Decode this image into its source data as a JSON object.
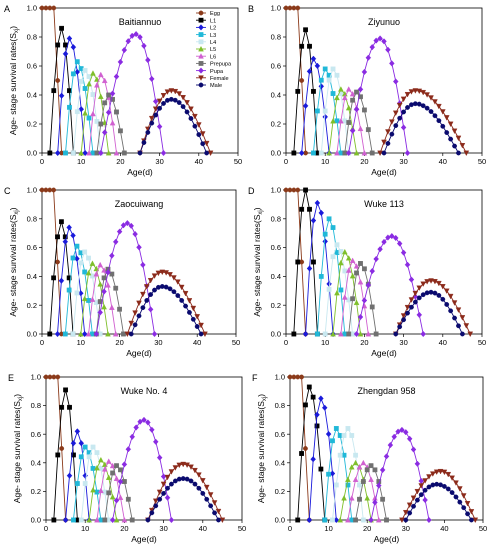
{
  "figure": {
    "legend": [
      {
        "label": "Egg",
        "color": "#8b3a1a",
        "marker": "circle"
      },
      {
        "label": "L1",
        "color": "#000000",
        "marker": "square"
      },
      {
        "label": "L2",
        "color": "#1a1adb",
        "marker": "diamond"
      },
      {
        "label": "L3",
        "color": "#20b8d8",
        "marker": "square"
      },
      {
        "label": "L4",
        "color": "#c8e8f0",
        "marker": "square"
      },
      {
        "label": "L5",
        "color": "#7fbf2a",
        "marker": "triangle"
      },
      {
        "label": "L6",
        "color": "#d060d0",
        "marker": "triangle"
      },
      {
        "label": "Prepupa",
        "color": "#707070",
        "marker": "square"
      },
      {
        "label": "Pupa",
        "color": "#8a2be2",
        "marker": "diamond"
      },
      {
        "label": "Female",
        "color": "#8b2a1a",
        "marker": "triangle-down"
      },
      {
        "label": "Male",
        "color": "#0a0a6e",
        "marker": "circle"
      }
    ]
  },
  "chart_data": [
    {
      "panel_letter": "A",
      "title": "Baitiannuo",
      "type": "line",
      "xlabel": "Age(d)",
      "ylabel": "Age- stage survival rates(S",
      "ylabel_sub": "xj",
      "ylabel_close": ")",
      "xlim": [
        0,
        50
      ],
      "ylim": [
        0,
        1.0
      ],
      "xticks": [
        0,
        10,
        20,
        30,
        40,
        50
      ],
      "yticks": [
        0.0,
        0.2,
        0.4,
        0.6,
        0.8,
        1.0
      ],
      "series": [
        {
          "stage": "Egg",
          "peak": 1.0,
          "start": 0,
          "plateau": 3,
          "end": 5
        },
        {
          "stage": "L1",
          "peak": 0.86,
          "start": 2,
          "mode": 5,
          "end": 8
        },
        {
          "stage": "L2",
          "peak": 0.79,
          "start": 4,
          "mode": 7,
          "end": 11
        },
        {
          "stage": "L3",
          "peak": 0.63,
          "start": 6,
          "mode": 9,
          "end": 13
        },
        {
          "stage": "L4",
          "peak": 0.57,
          "start": 8,
          "mode": 11,
          "end": 15
        },
        {
          "stage": "L5",
          "peak": 0.55,
          "start": 10,
          "mode": 13,
          "end": 17
        },
        {
          "stage": "L6",
          "peak": 0.54,
          "start": 12,
          "mode": 15,
          "end": 19
        },
        {
          "stage": "Prepupa",
          "peak": 0.4,
          "start": 14,
          "mode": 17,
          "end": 21
        },
        {
          "stage": "Pupa",
          "peak": 0.82,
          "start": 15,
          "mode": 24,
          "end": 31
        },
        {
          "stage": "Female",
          "peak": 0.43,
          "start": 25,
          "mode": 33,
          "end": 43
        },
        {
          "stage": "Male",
          "peak": 0.37,
          "start": 25,
          "mode": 33,
          "end": 42
        }
      ]
    },
    {
      "panel_letter": "B",
      "title": "Ziyunuo",
      "type": "line",
      "xlabel": "Age(d)",
      "ylabel": "",
      "xlim": [
        0,
        50
      ],
      "ylim": [
        0,
        1.0
      ],
      "xticks": [
        0,
        10,
        20,
        30,
        40,
        50
      ],
      "yticks": [
        0.0,
        0.2,
        0.4,
        0.6,
        0.8,
        1.0
      ],
      "series": [
        {
          "stage": "Egg",
          "peak": 1.0,
          "start": 0,
          "plateau": 3,
          "end": 5
        },
        {
          "stage": "L1",
          "peak": 0.85,
          "start": 2,
          "mode": 5,
          "end": 8
        },
        {
          "stage": "L2",
          "peak": 0.65,
          "start": 4,
          "mode": 7,
          "end": 11
        },
        {
          "stage": "L3",
          "peak": 0.58,
          "start": 7,
          "mode": 10,
          "end": 14
        },
        {
          "stage": "L4",
          "peak": 0.58,
          "start": 9,
          "mode": 12,
          "end": 16
        },
        {
          "stage": "L5",
          "peak": 0.44,
          "start": 11,
          "mode": 14,
          "end": 18
        },
        {
          "stage": "L6",
          "peak": 0.44,
          "start": 13,
          "mode": 16,
          "end": 20
        },
        {
          "stage": "Prepupa",
          "peak": 0.42,
          "start": 15,
          "mode": 18,
          "end": 22
        },
        {
          "stage": "Pupa",
          "peak": 0.79,
          "start": 16,
          "mode": 24,
          "end": 31
        },
        {
          "stage": "Female",
          "peak": 0.43,
          "start": 24,
          "mode": 33,
          "end": 46
        },
        {
          "stage": "Male",
          "peak": 0.34,
          "start": 25,
          "mode": 33,
          "end": 44
        }
      ]
    },
    {
      "panel_letter": "C",
      "title": "Zaocuiwang",
      "type": "line",
      "xlabel": "Age(d)",
      "ylabel": "Age- stage survival rates(S",
      "ylabel_sub": "xj",
      "ylabel_close": ")",
      "xlim": [
        0,
        50
      ],
      "ylim": [
        0,
        1.0
      ],
      "xticks": [
        0,
        10,
        20,
        30,
        40,
        50
      ],
      "yticks": [
        0.0,
        0.2,
        0.4,
        0.6,
        0.8,
        1.0
      ],
      "series": [
        {
          "stage": "Egg",
          "peak": 1.0,
          "start": 0,
          "plateau": 3,
          "end": 5
        },
        {
          "stage": "L1",
          "peak": 0.78,
          "start": 2,
          "mode": 5,
          "end": 8
        },
        {
          "stage": "L2",
          "peak": 0.74,
          "start": 4,
          "mode": 7,
          "end": 11
        },
        {
          "stage": "L3",
          "peak": 0.61,
          "start": 6,
          "mode": 9,
          "end": 13
        },
        {
          "stage": "L4",
          "peak": 0.57,
          "start": 8,
          "mode": 11,
          "end": 15
        },
        {
          "stage": "L5",
          "peak": 0.49,
          "start": 10,
          "mode": 13,
          "end": 17
        },
        {
          "stage": "L6",
          "peak": 0.48,
          "start": 12,
          "mode": 15,
          "end": 19
        },
        {
          "stage": "Prepupa",
          "peak": 0.45,
          "start": 14,
          "mode": 17,
          "end": 21
        },
        {
          "stage": "Pupa",
          "peak": 0.77,
          "start": 14,
          "mode": 22,
          "end": 29
        },
        {
          "stage": "Female",
          "peak": 0.43,
          "start": 22,
          "mode": 31,
          "end": 42
        },
        {
          "stage": "Male",
          "peak": 0.33,
          "start": 23,
          "mode": 31,
          "end": 41
        }
      ]
    },
    {
      "panel_letter": "D",
      "title": "Wuke 113",
      "type": "line",
      "xlabel": "Age(d)",
      "ylabel": "Age- stage survival rates(S",
      "ylabel_sub": "xj",
      "ylabel_close": ")",
      "xlim": [
        0,
        50
      ],
      "ylim": [
        0,
        1.0
      ],
      "xticks": [
        0,
        10,
        20,
        30,
        40,
        50
      ],
      "yticks": [
        0.0,
        0.2,
        0.4,
        0.6,
        0.8,
        1.0
      ],
      "series": [
        {
          "stage": "Egg",
          "peak": 1.0,
          "start": 0,
          "plateau": 3,
          "end": 5
        },
        {
          "stage": "L1",
          "peak": 1.0,
          "start": 2,
          "mode": 5,
          "end": 8
        },
        {
          "stage": "L2",
          "peak": 0.91,
          "start": 5,
          "mode": 8,
          "end": 12
        },
        {
          "stage": "L3",
          "peak": 0.8,
          "start": 8,
          "mode": 11,
          "end": 15
        },
        {
          "stage": "L4",
          "peak": 0.62,
          "start": 10,
          "mode": 13,
          "end": 17
        },
        {
          "stage": "L5",
          "peak": 0.57,
          "start": 12,
          "mode": 15,
          "end": 19
        },
        {
          "stage": "L6",
          "peak": 0.51,
          "start": 14,
          "mode": 17,
          "end": 21
        },
        {
          "stage": "Prepupa",
          "peak": 0.49,
          "start": 16,
          "mode": 19,
          "end": 23
        },
        {
          "stage": "Pupa",
          "peak": 0.68,
          "start": 18,
          "mode": 27,
          "end": 35
        },
        {
          "stage": "Female",
          "peak": 0.37,
          "start": 28,
          "mode": 37,
          "end": 47
        },
        {
          "stage": "Male",
          "peak": 0.29,
          "start": 28,
          "mode": 37,
          "end": 45
        }
      ]
    },
    {
      "panel_letter": "E",
      "title": "Wuke No. 4",
      "type": "line",
      "xlabel": "Age(d)",
      "ylabel": "Age- stage survival rates(S",
      "ylabel_sub": "xj",
      "ylabel_close": ")",
      "xlim": [
        0,
        50
      ],
      "ylim": [
        0,
        1.0
      ],
      "xticks": [
        0,
        10,
        20,
        30,
        40,
        50
      ],
      "yticks": [
        0.0,
        0.2,
        0.4,
        0.6,
        0.8,
        1.0
      ],
      "series": [
        {
          "stage": "Egg",
          "peak": 1.0,
          "start": 0,
          "plateau": 3,
          "end": 5
        },
        {
          "stage": "L1",
          "peak": 0.91,
          "start": 2,
          "mode": 5,
          "end": 8
        },
        {
          "stage": "L2",
          "peak": 0.62,
          "start": 5,
          "mode": 8,
          "end": 11
        },
        {
          "stage": "L3",
          "peak": 0.51,
          "start": 7,
          "mode": 10,
          "end": 14
        },
        {
          "stage": "L4",
          "peak": 0.51,
          "start": 9,
          "mode": 12,
          "end": 16
        },
        {
          "stage": "L5",
          "peak": 0.42,
          "start": 11,
          "mode": 14,
          "end": 18
        },
        {
          "stage": "L6",
          "peak": 0.41,
          "start": 13,
          "mode": 16,
          "end": 20
        },
        {
          "stage": "Prepupa",
          "peak": 0.38,
          "start": 15,
          "mode": 18,
          "end": 22
        },
        {
          "stage": "Pupa",
          "peak": 0.7,
          "start": 17,
          "mode": 25,
          "end": 32
        },
        {
          "stage": "Female",
          "peak": 0.39,
          "start": 26,
          "mode": 35,
          "end": 45
        },
        {
          "stage": "Male",
          "peak": 0.29,
          "start": 26,
          "mode": 35,
          "end": 44
        }
      ]
    },
    {
      "panel_letter": "F",
      "title": "Zhengdan 958",
      "type": "line",
      "xlabel": "Age(d)",
      "ylabel": "Age- stage survival rates(S",
      "ylabel_sub": "xj",
      "ylabel_close": ")",
      "xlim": [
        0,
        50
      ],
      "ylim": [
        0,
        1.0
      ],
      "xticks": [
        0,
        10,
        20,
        30,
        40,
        50
      ],
      "yticks": [
        0.0,
        0.2,
        0.4,
        0.6,
        0.8,
        1.0
      ],
      "series": [
        {
          "stage": "Egg",
          "peak": 1.0,
          "start": 0,
          "plateau": 3,
          "end": 5
        },
        {
          "stage": "L1",
          "peak": 0.93,
          "start": 2,
          "mode": 5,
          "end": 9
        },
        {
          "stage": "L2",
          "peak": 0.85,
          "start": 5,
          "mode": 8,
          "end": 12
        },
        {
          "stage": "L3",
          "peak": 0.64,
          "start": 9,
          "mode": 12,
          "end": 16
        },
        {
          "stage": "L4",
          "peak": 0.64,
          "start": 11,
          "mode": 15,
          "end": 19
        },
        {
          "stage": "L5",
          "peak": 0.4,
          "start": 13,
          "mode": 17,
          "end": 21
        },
        {
          "stage": "L6",
          "peak": 0.4,
          "start": 15,
          "mode": 19,
          "end": 23
        },
        {
          "stage": "Prepupa",
          "peak": 0.38,
          "start": 17,
          "mode": 21,
          "end": 25
        },
        {
          "stage": "Pupa",
          "peak": 0.63,
          "start": 21,
          "mode": 29,
          "end": 36
        },
        {
          "stage": "Female",
          "peak": 0.34,
          "start": 29,
          "mode": 39,
          "end": 48
        },
        {
          "stage": "Male",
          "peak": 0.25,
          "start": 30,
          "mode": 38,
          "end": 47
        }
      ]
    }
  ]
}
